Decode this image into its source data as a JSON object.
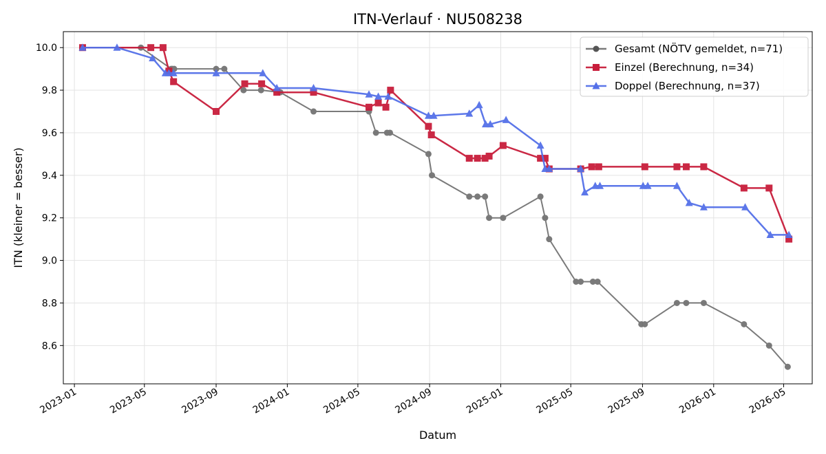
{
  "chart_data": {
    "type": "line",
    "title": "ITN-Verlauf · NU508238",
    "xlabel": "Datum",
    "ylabel": "ITN  (kleiner = besser)",
    "x_ticks": [
      "2023-01",
      "2023-05",
      "2023-09",
      "2024-01",
      "2024-05",
      "2024-09",
      "2025-01",
      "2025-05",
      "2025-09",
      "2026-01",
      "2026-05"
    ],
    "y_ticks": [
      "8.6",
      "8.8",
      "9.0",
      "9.2",
      "9.4",
      "9.6",
      "9.8",
      "10.0"
    ],
    "xlim": [
      "2022-12-13",
      "2026-06-19"
    ],
    "ylim": [
      8.42,
      10.075
    ],
    "grid": true,
    "legend_position": "top-right",
    "series": [
      {
        "name": "Gesamt (NÖTV gemeldet, n=71)",
        "color": "#555555",
        "marker": "circle",
        "points": [
          [
            "2023-01-15",
            10.0
          ],
          [
            "2023-04-25",
            10.0
          ],
          [
            "2023-06-16",
            9.9
          ],
          [
            "2023-06-18",
            9.9
          ],
          [
            "2023-06-21",
            9.9
          ],
          [
            "2023-09-01",
            9.9
          ],
          [
            "2023-09-15",
            9.9
          ],
          [
            "2023-10-18",
            9.8
          ],
          [
            "2023-11-17",
            9.8
          ],
          [
            "2023-12-20",
            9.79
          ],
          [
            "2024-02-15",
            9.7
          ],
          [
            "2024-05-20",
            9.7
          ],
          [
            "2024-06-01",
            9.6
          ],
          [
            "2024-06-20",
            9.6
          ],
          [
            "2024-06-25",
            9.6
          ],
          [
            "2024-08-30",
            9.5
          ],
          [
            "2024-09-05",
            9.4
          ],
          [
            "2024-11-08",
            9.3
          ],
          [
            "2024-11-22",
            9.3
          ],
          [
            "2024-12-05",
            9.3
          ],
          [
            "2024-12-12",
            9.2
          ],
          [
            "2025-01-05",
            9.2
          ],
          [
            "2025-03-10",
            9.3
          ],
          [
            "2025-03-18",
            9.2
          ],
          [
            "2025-03-25",
            9.1
          ],
          [
            "2025-05-10",
            8.9
          ],
          [
            "2025-05-18",
            8.9
          ],
          [
            "2025-06-08",
            8.9
          ],
          [
            "2025-06-16",
            8.9
          ],
          [
            "2025-08-30",
            8.7
          ],
          [
            "2025-09-05",
            8.7
          ],
          [
            "2025-10-30",
            8.8
          ],
          [
            "2025-11-15",
            8.8
          ],
          [
            "2025-12-15",
            8.8
          ],
          [
            "2026-02-22",
            8.7
          ],
          [
            "2026-04-06",
            8.6
          ],
          [
            "2026-05-08",
            8.5
          ]
        ]
      },
      {
        "name": "Einzel (Berechnung, n=34)",
        "color": "#c81d3b",
        "marker": "square",
        "points": [
          [
            "2023-01-15",
            10.0
          ],
          [
            "2023-05-12",
            10.0
          ],
          [
            "2023-06-02",
            10.0
          ],
          [
            "2023-06-12",
            9.89
          ],
          [
            "2023-06-20",
            9.84
          ],
          [
            "2023-09-01",
            9.7
          ],
          [
            "2023-10-20",
            9.83
          ],
          [
            "2023-11-18",
            9.83
          ],
          [
            "2023-12-14",
            9.79
          ],
          [
            "2024-02-15",
            9.79
          ],
          [
            "2024-05-20",
            9.72
          ],
          [
            "2024-06-05",
            9.74
          ],
          [
            "2024-06-18",
            9.72
          ],
          [
            "2024-06-26",
            9.8
          ],
          [
            "2024-08-30",
            9.63
          ],
          [
            "2024-09-04",
            9.59
          ],
          [
            "2024-11-08",
            9.48
          ],
          [
            "2024-11-22",
            9.48
          ],
          [
            "2024-12-05",
            9.48
          ],
          [
            "2024-12-12",
            9.49
          ],
          [
            "2025-01-05",
            9.54
          ],
          [
            "2025-03-10",
            9.48
          ],
          [
            "2025-03-18",
            9.48
          ],
          [
            "2025-03-25",
            9.43
          ],
          [
            "2025-05-18",
            9.43
          ],
          [
            "2025-06-06",
            9.44
          ],
          [
            "2025-06-18",
            9.44
          ],
          [
            "2025-09-05",
            9.44
          ],
          [
            "2025-10-30",
            9.44
          ],
          [
            "2025-11-15",
            9.44
          ],
          [
            "2025-12-15",
            9.44
          ],
          [
            "2026-02-22",
            9.34
          ],
          [
            "2026-04-06",
            9.34
          ],
          [
            "2026-05-10",
            9.1
          ]
        ]
      },
      {
        "name": "Doppel (Berechnung, n=37)",
        "color": "#5470e8",
        "marker": "triangle",
        "points": [
          [
            "2023-01-15",
            10.0
          ],
          [
            "2023-03-15",
            10.0
          ],
          [
            "2023-05-15",
            9.95
          ],
          [
            "2023-06-06",
            9.88
          ],
          [
            "2023-06-12",
            9.88
          ],
          [
            "2023-06-20",
            9.88
          ],
          [
            "2023-09-01",
            9.88
          ],
          [
            "2023-11-20",
            9.88
          ],
          [
            "2023-12-14",
            9.81
          ],
          [
            "2024-02-15",
            9.81
          ],
          [
            "2024-05-20",
            9.78
          ],
          [
            "2024-06-05",
            9.77
          ],
          [
            "2024-06-22",
            9.77
          ],
          [
            "2024-08-30",
            9.68
          ],
          [
            "2024-09-08",
            9.68
          ],
          [
            "2024-11-08",
            9.69
          ],
          [
            "2024-11-25",
            9.73
          ],
          [
            "2024-12-06",
            9.64
          ],
          [
            "2024-12-14",
            9.64
          ],
          [
            "2025-01-10",
            9.66
          ],
          [
            "2025-03-10",
            9.54
          ],
          [
            "2025-03-18",
            9.43
          ],
          [
            "2025-03-25",
            9.43
          ],
          [
            "2025-05-18",
            9.43
          ],
          [
            "2025-05-25",
            9.32
          ],
          [
            "2025-06-12",
            9.35
          ],
          [
            "2025-06-20",
            9.35
          ],
          [
            "2025-09-02",
            9.35
          ],
          [
            "2025-09-10",
            9.35
          ],
          [
            "2025-10-30",
            9.35
          ],
          [
            "2025-11-20",
            9.27
          ],
          [
            "2025-12-15",
            9.25
          ],
          [
            "2026-02-24",
            9.25
          ],
          [
            "2026-04-08",
            9.12
          ],
          [
            "2026-05-10",
            9.12
          ]
        ]
      }
    ]
  }
}
